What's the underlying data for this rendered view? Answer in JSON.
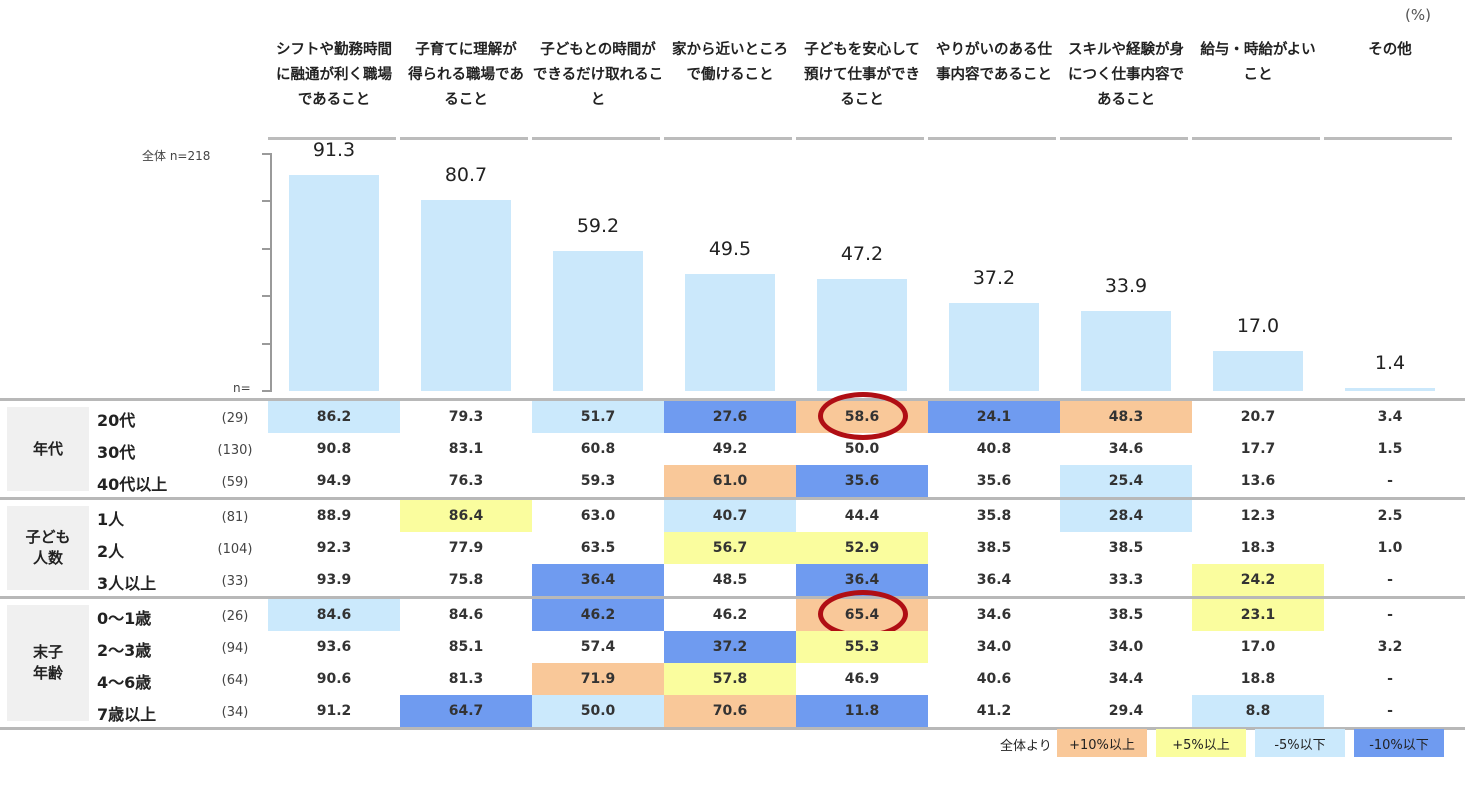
{
  "unit_label": "(%)",
  "base_label": "全体 n=218",
  "n_label": "n=",
  "categories": [
    [
      "シフトや勤務時間",
      "に融通が利く職場",
      "であること"
    ],
    [
      "子育てに理解が",
      "得られる職場であ",
      "ること"
    ],
    [
      "子どもとの時間が",
      "できるだけ取れるこ",
      "と"
    ],
    [
      "家から近いところ",
      "で働けること"
    ],
    [
      "子どもを安心して",
      "預けて仕事ができ",
      "ること"
    ],
    [
      "やりがいのある仕",
      "事内容であること"
    ],
    [
      "スキルや経験が身",
      "につく仕事内容で",
      "あること"
    ],
    [
      "給与・時給がよい",
      "こと"
    ],
    [
      "その他"
    ]
  ],
  "overall_labels": [
    "91.3",
    "80.7",
    "59.2",
    "49.5",
    "47.2",
    "37.2",
    "33.9",
    "17.0",
    "1.4"
  ],
  "groups": [
    {
      "label": [
        "年代"
      ],
      "rows": [
        {
          "label": "20代",
          "n": "(29)",
          "values": [
            "86.2",
            "79.3",
            "51.7",
            "27.6",
            "58.6",
            "24.1",
            "48.3",
            "20.7",
            "3.4"
          ],
          "colors": [
            "l",
            "",
            "l",
            "b",
            "o",
            "b",
            "o",
            "",
            ""
          ],
          "circles": [
            4
          ]
        },
        {
          "label": "30代",
          "n": "(130)",
          "values": [
            "90.8",
            "83.1",
            "60.8",
            "49.2",
            "50.0",
            "40.8",
            "34.6",
            "17.7",
            "1.5"
          ],
          "colors": [
            "",
            "",
            "",
            "",
            "",
            "",
            "",
            "",
            ""
          ],
          "circles": []
        },
        {
          "label": "40代以上",
          "n": "(59)",
          "values": [
            "94.9",
            "76.3",
            "59.3",
            "61.0",
            "35.6",
            "35.6",
            "25.4",
            "13.6",
            "-"
          ],
          "colors": [
            "",
            "",
            "",
            "o",
            "b",
            "",
            "l",
            "",
            ""
          ],
          "circles": []
        }
      ]
    },
    {
      "label": [
        "子ども",
        "人数"
      ],
      "rows": [
        {
          "label": "1人",
          "n": "(81)",
          "values": [
            "88.9",
            "86.4",
            "63.0",
            "40.7",
            "44.4",
            "35.8",
            "28.4",
            "12.3",
            "2.5"
          ],
          "colors": [
            "",
            "y",
            "",
            "l",
            "",
            "",
            "l",
            "",
            ""
          ],
          "circles": []
        },
        {
          "label": "2人",
          "n": "(104)",
          "values": [
            "92.3",
            "77.9",
            "63.5",
            "56.7",
            "52.9",
            "38.5",
            "38.5",
            "18.3",
            "1.0"
          ],
          "colors": [
            "",
            "",
            "",
            "y",
            "y",
            "",
            "",
            "",
            ""
          ],
          "circles": []
        },
        {
          "label": "3人以上",
          "n": "(33)",
          "values": [
            "93.9",
            "75.8",
            "36.4",
            "48.5",
            "36.4",
            "36.4",
            "33.3",
            "24.2",
            "-"
          ],
          "colors": [
            "",
            "",
            "b",
            "",
            "b",
            "",
            "",
            "y",
            ""
          ],
          "circles": []
        }
      ]
    },
    {
      "label": [
        "末子",
        "年齢"
      ],
      "rows": [
        {
          "label": "0～1歳",
          "n": "(26)",
          "values": [
            "84.6",
            "84.6",
            "46.2",
            "46.2",
            "65.4",
            "34.6",
            "38.5",
            "23.1",
            "-"
          ],
          "colors": [
            "l",
            "",
            "b",
            "",
            "o",
            "",
            "",
            "y",
            ""
          ],
          "circles": [
            4
          ]
        },
        {
          "label": "2～3歳",
          "n": "(94)",
          "values": [
            "93.6",
            "85.1",
            "57.4",
            "37.2",
            "55.3",
            "34.0",
            "34.0",
            "17.0",
            "3.2"
          ],
          "colors": [
            "",
            "",
            "",
            "b",
            "y",
            "",
            "",
            "",
            ""
          ],
          "circles": []
        },
        {
          "label": "4～6歳",
          "n": "(64)",
          "values": [
            "90.6",
            "81.3",
            "71.9",
            "57.8",
            "46.9",
            "40.6",
            "34.4",
            "18.8",
            "-"
          ],
          "colors": [
            "",
            "",
            "o",
            "y",
            "",
            "",
            "",
            "",
            ""
          ],
          "circles": []
        },
        {
          "label": "7歳以上",
          "n": "(34)",
          "values": [
            "91.2",
            "64.7",
            "50.0",
            "70.6",
            "11.8",
            "41.2",
            "29.4",
            "8.8",
            "-"
          ],
          "colors": [
            "",
            "b",
            "l",
            "o",
            "b",
            "",
            "",
            "l",
            ""
          ],
          "circles": []
        }
      ]
    }
  ],
  "legend": {
    "prefix": "全体より",
    "items": [
      {
        "label": "+10%以上",
        "color": "#f9c899"
      },
      {
        "label": "+5%以上",
        "color": "#fafd9e"
      },
      {
        "label": "‐5%以下",
        "color": "#cbe9fc"
      },
      {
        "label": "‐10%以下",
        "color": "#6f9bf0"
      }
    ]
  },
  "chart_data": {
    "type": "bar",
    "categories": [
      "シフトや勤務時間に融通が利く職場であること",
      "子育てに理解が得られる職場であること",
      "子どもとの時間ができるだけ取れること",
      "家から近いところで働けること",
      "子どもを安心して預けて仕事ができること",
      "やりがいのある仕事内容であること",
      "スキルや経験が身につく仕事内容であること",
      "給与・時給がよいこと",
      "その他"
    ],
    "values": [
      91.3,
      80.7,
      59.2,
      49.5,
      47.2,
      37.2,
      33.9,
      17.0,
      1.4
    ],
    "ylim": [
      0,
      100
    ],
    "ylabel": "",
    "xlabel": "",
    "title": "",
    "unit": "(%)",
    "colors": {
      "bar": "#cbe8fb"
    }
  }
}
